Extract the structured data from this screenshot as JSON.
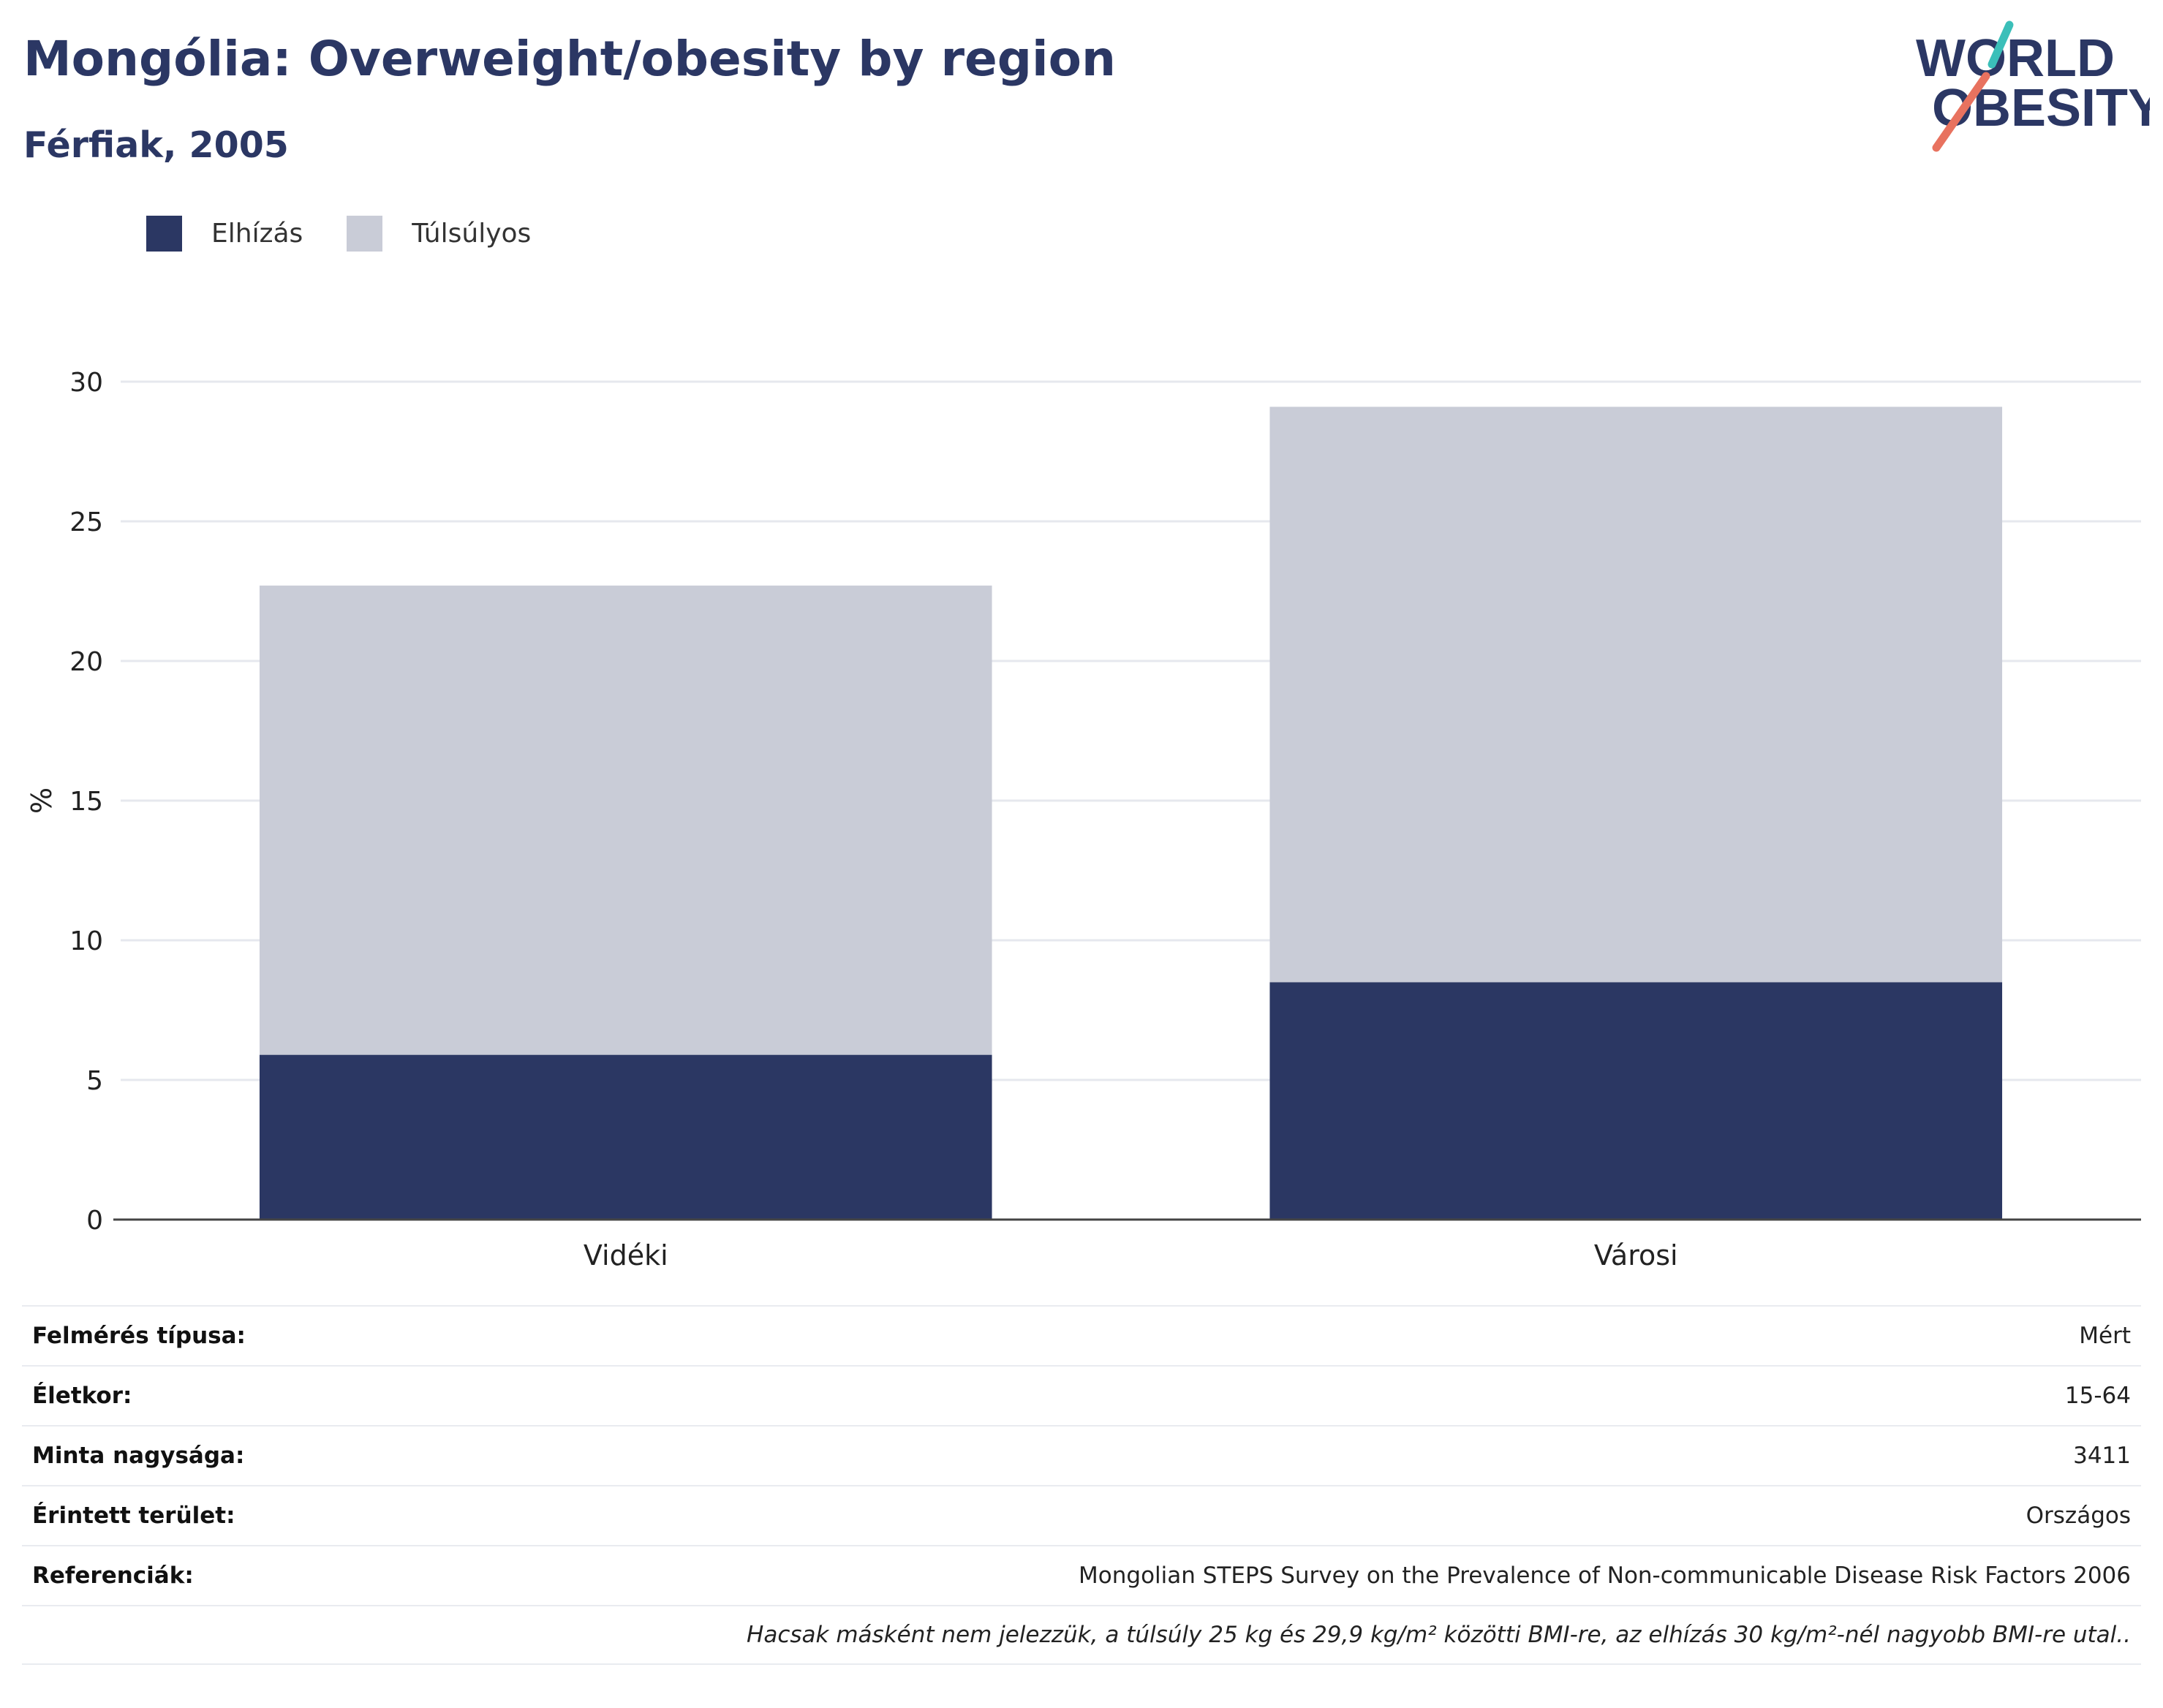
{
  "header": {
    "title": "Mongólia: Overweight/obesity by region",
    "subtitle": "Férfiak, 2005"
  },
  "logo": {
    "line1": "WORLD",
    "line2": "OBESITY"
  },
  "colors": {
    "obesity": "#2b3763",
    "overweight": "#c9ccd7",
    "title": "#2b3764",
    "logo_teal": "#3bbfb9",
    "logo_coral": "#e8725f"
  },
  "chart_data": {
    "type": "bar",
    "stacked": true,
    "categories": [
      "Vidéki",
      "Városi"
    ],
    "series": [
      {
        "name": "Elhízás",
        "values": [
          5.9,
          8.5
        ]
      },
      {
        "name": "Túlsúlyos",
        "values": [
          16.8,
          20.6
        ]
      }
    ],
    "ylabel": "%",
    "ylim": [
      0,
      30
    ],
    "yticks": [
      0,
      5,
      10,
      15,
      20,
      25,
      30
    ],
    "grid": true,
    "legend": "top-left"
  },
  "meta": [
    {
      "label": "Felmérés típusa:",
      "value": "Mért"
    },
    {
      "label": "Életkor:",
      "value": "15-64"
    },
    {
      "label": "Minta nagysága:",
      "value": "3411"
    },
    {
      "label": "Érintett terület:",
      "value": "Országos"
    },
    {
      "label": "Referenciák:",
      "value": "Mongolian STEPS Survey on the Prevalence of Non-communicable Disease Risk Factors 2006"
    },
    {
      "label": "",
      "value": "Hacsak másként nem jelezzük, a túlsúly 25 kg és 29,9 kg/m² közötti BMI-re, az elhízás 30 kg/m²-nél nagyobb BMI-re utal.."
    }
  ]
}
